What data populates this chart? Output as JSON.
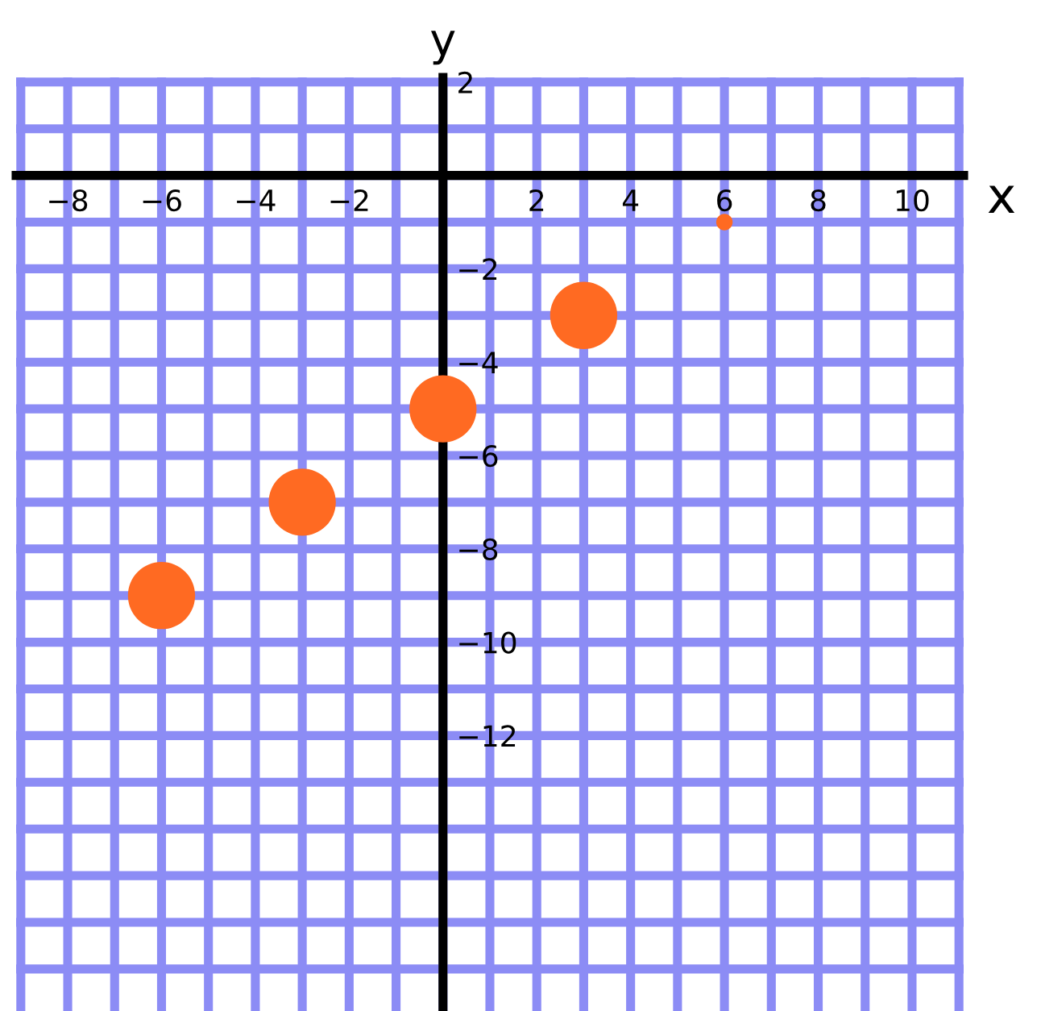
{
  "chart_data": {
    "type": "bubble",
    "xlabel": "x",
    "ylabel": "y",
    "series": [
      {
        "color": "#ff6a22",
        "x": [
          -6,
          -3,
          0,
          3,
          6
        ],
        "values": [
          -9,
          -7,
          -5,
          -3,
          -1
        ],
        "sizes": [
          1,
          1,
          1,
          1,
          0.06
        ]
      }
    ],
    "xlim": [
      -9.1,
      11.1
    ],
    "ylim": [
      -17.9,
      2.1
    ],
    "xticks": [
      {
        "value": -9,
        "label": null
      },
      {
        "value": -8,
        "label": "−8"
      },
      {
        "value": -7,
        "label": null
      },
      {
        "value": -6,
        "label": "−6"
      },
      {
        "value": -5,
        "label": null
      },
      {
        "value": -4,
        "label": "−4"
      },
      {
        "value": -3,
        "label": null
      },
      {
        "value": -2,
        "label": "−2"
      },
      {
        "value": -1,
        "label": null
      },
      {
        "value": 0,
        "label": null
      },
      {
        "value": 1,
        "label": null
      },
      2,
      {
        "value": 3,
        "label": null
      },
      4,
      {
        "value": 5,
        "label": null
      },
      6,
      {
        "value": 7,
        "label": null
      },
      8,
      {
        "value": 9,
        "label": null
      },
      10,
      {
        "value": 11,
        "label": null
      }
    ],
    "yticks": [
      {
        "value": -17,
        "label": null
      },
      {
        "value": -16,
        "label": null
      },
      {
        "value": -15,
        "label": null
      },
      {
        "value": -14,
        "label": null
      },
      {
        "value": -13,
        "label": null
      },
      {
        "value": -12,
        "label": "−12"
      },
      {
        "value": -11,
        "label": null
      },
      {
        "value": -10,
        "label": "−10"
      },
      {
        "value": -9,
        "label": null
      },
      {
        "value": -8,
        "label": "−8"
      },
      {
        "value": -7,
        "label": null
      },
      {
        "value": -6,
        "label": "−6"
      },
      {
        "value": -5,
        "label": null
      },
      {
        "value": -4,
        "label": "−4"
      },
      {
        "value": -3,
        "label": null
      },
      {
        "value": -2,
        "label": "−2"
      },
      {
        "value": -1,
        "label": null
      },
      {
        "value": 0,
        "label": null
      },
      {
        "value": 1,
        "label": null
      },
      2
    ],
    "grid": true
  }
}
